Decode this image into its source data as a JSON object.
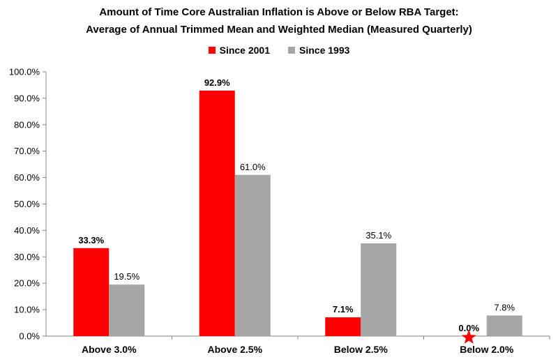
{
  "chart_data": {
    "type": "bar",
    "title": "Amount of Time Core Australian Inflation is Above or Below RBA Target:",
    "subtitle": "Average of Annual Trimmed Mean and Weighted Median (Measured Quarterly)",
    "categories": [
      "Above 3.0%",
      "Above 2.5%",
      "Below 2.5%",
      "Below 2.0%"
    ],
    "series": [
      {
        "name": "Since 2001",
        "color": "#ff0000",
        "values": [
          33.3,
          92.9,
          7.1,
          0.0
        ],
        "labels": [
          "33.3%",
          "92.9%",
          "7.1%",
          "0.0%"
        ]
      },
      {
        "name": "Since 1993",
        "color": "#a6a6a6",
        "values": [
          19.5,
          61.0,
          35.1,
          7.8
        ],
        "labels": [
          "19.5%",
          "61.0%",
          "35.1%",
          "7.8%"
        ]
      }
    ],
    "ylim": [
      0,
      100
    ],
    "yticks": [
      "0.0%",
      "10.0%",
      "20.0%",
      "30.0%",
      "40.0%",
      "50.0%",
      "60.0%",
      "70.0%",
      "80.0%",
      "90.0%",
      "100.0%"
    ],
    "legend_position": "top",
    "grid": false,
    "annotation": {
      "type": "star",
      "color": "#ff0000",
      "category": "Below 2.0%",
      "series": "Since 2001"
    }
  }
}
